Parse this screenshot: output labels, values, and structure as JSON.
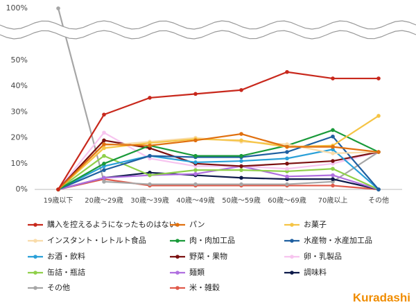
{
  "chart_data": {
    "type": "line",
    "categories": [
      "19歳以下",
      "20歳～29歳",
      "30歳～39歳",
      "40歳～49歳",
      "50歳～59歳",
      "60歳～69歳",
      "70歳以上",
      "その他"
    ],
    "series": [
      {
        "name": "購入を控えるようになったものはない",
        "color": "#c8281c",
        "values": [
          0,
          29,
          35.5,
          37,
          38.5,
          45.5,
          43,
          43
        ]
      },
      {
        "name": "パン",
        "color": "#e0700f",
        "values": [
          0,
          17.5,
          17,
          19,
          21.5,
          16.5,
          16.5,
          14.5
        ]
      },
      {
        "name": "お菓子",
        "color": "#f5c445",
        "values": [
          0,
          16,
          18,
          19.5,
          19,
          16.5,
          17,
          28.5
        ]
      },
      {
        "name": "インスタント・レトルト食品",
        "color": "#f9dcaa",
        "values": [
          0,
          17,
          18.5,
          20,
          18.5,
          17.5,
          14,
          14.5
        ]
      },
      {
        "name": "肉・肉加工品",
        "color": "#1a9a3a",
        "values": [
          0,
          10,
          17,
          13,
          13,
          17,
          23,
          14.5
        ]
      },
      {
        "name": "水産物・水産加工品",
        "color": "#1f5fa0",
        "values": [
          0,
          7.5,
          13,
          12.5,
          12.5,
          14.5,
          20.5,
          0
        ]
      },
      {
        "name": "お酒・飲料",
        "color": "#2aa0d8",
        "values": [
          0,
          9,
          13,
          10.5,
          11,
          12,
          15.5,
          0
        ]
      },
      {
        "name": "野菜・果物",
        "color": "#7b1010",
        "values": [
          0,
          19,
          16,
          10,
          9,
          10,
          11,
          14.5
        ]
      },
      {
        "name": "卵・乳製品",
        "color": "#f7c4ef",
        "values": [
          0,
          22,
          12,
          9,
          9,
          8,
          10,
          14.5
        ]
      },
      {
        "name": "缶詰・瓶詰",
        "color": "#8fd04a",
        "values": [
          0,
          13,
          5.5,
          7.5,
          7.5,
          7,
          8,
          0
        ]
      },
      {
        "name": "麺類",
        "color": "#b070e0",
        "values": [
          0,
          4.5,
          5.5,
          6,
          9,
          5,
          5.5,
          0
        ]
      },
      {
        "name": "調味料",
        "color": "#0d1a4a",
        "values": [
          0,
          4.5,
          6.5,
          5.5,
          4.5,
          4,
          4,
          0
        ]
      },
      {
        "name": "その他",
        "color": "#a6a6a6",
        "values": [
          100,
          3,
          2,
          2,
          2,
          2,
          3,
          14.5
        ]
      },
      {
        "name": "米・雑穀",
        "color": "#e05a4a",
        "values": [
          0,
          4,
          1.5,
          1.5,
          1.5,
          1.5,
          1.5,
          0
        ]
      }
    ],
    "ylim": [
      0,
      100
    ],
    "yticks": [
      {
        "value": 0,
        "label": "0%"
      },
      {
        "value": 10,
        "label": "10%"
      },
      {
        "value": 20,
        "label": "20%"
      },
      {
        "value": 30,
        "label": "30%"
      },
      {
        "value": 40,
        "label": "40%"
      },
      {
        "value": 50,
        "label": "50%"
      },
      {
        "value": 100,
        "label": "100%"
      }
    ],
    "broken_axis": true,
    "grid": false
  },
  "brand": "Kuradashi"
}
